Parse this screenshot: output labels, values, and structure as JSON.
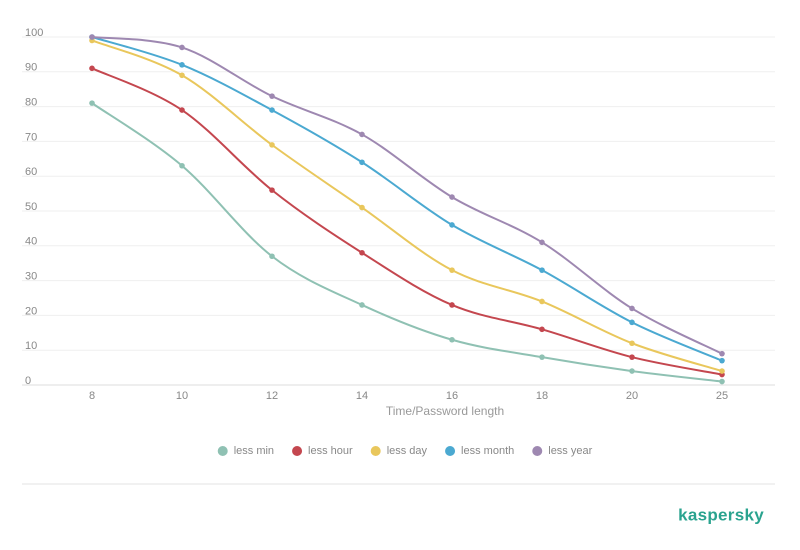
{
  "chart_data": {
    "type": "line",
    "x_label": "Time/Password length",
    "categories": [
      "8",
      "10",
      "12",
      "14",
      "16",
      "18",
      "20",
      "25"
    ],
    "series": [
      {
        "name": "less min",
        "color": "#8fc1b3",
        "values": [
          81,
          63,
          37,
          23,
          13,
          8,
          4,
          1
        ]
      },
      {
        "name": "less hour",
        "color": "#c4474f",
        "values": [
          91,
          79,
          56,
          38,
          23,
          16,
          8,
          3
        ]
      },
      {
        "name": "less day",
        "color": "#e9c75c",
        "values": [
          99,
          89,
          69,
          51,
          33,
          24,
          12,
          4
        ]
      },
      {
        "name": "less month",
        "color": "#4ba9d1",
        "values": [
          100,
          92,
          79,
          64,
          46,
          33,
          18,
          7
        ]
      },
      {
        "name": "less year",
        "color": "#9e88b1",
        "values": [
          100,
          97,
          83,
          72,
          54,
          41,
          22,
          9
        ]
      }
    ],
    "ylim": [
      0,
      100
    ],
    "yticks": [
      0,
      10,
      20,
      30,
      40,
      50,
      60,
      70,
      80,
      90,
      100
    ],
    "grid": true,
    "legend": "bottom"
  },
  "footer": {
    "brand": "kaspersky"
  }
}
